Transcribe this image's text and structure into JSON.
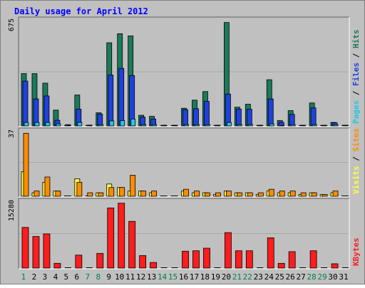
{
  "chart_data": {
    "type": "bar",
    "title": "Daily usage for April 2012",
    "categories": [
      "1",
      "2",
      "3",
      "4",
      "5",
      "6",
      "7",
      "8",
      "9",
      "10",
      "11",
      "12",
      "13",
      "14",
      "15",
      "16",
      "17",
      "18",
      "19",
      "20",
      "21",
      "22",
      "23",
      "24",
      "25",
      "26",
      "27",
      "28",
      "29",
      "30",
      "31"
    ],
    "weekend_days": [
      "1",
      "7",
      "8",
      "14",
      "15",
      "21",
      "22",
      "28",
      "29"
    ],
    "panels": [
      {
        "id": "hits_files_pages",
        "ymax_label": "675",
        "ymax": 675,
        "legend": [
          "Pages",
          "Files",
          "Hits"
        ],
        "series": [
          {
            "name": "Hits",
            "color": "#1a7a5c",
            "values": [
              335,
              335,
              274,
              101,
              0,
              198,
              0,
              84,
              533,
              591,
              577,
              68,
              61,
              0,
              0,
              113,
              165,
              220,
              0,
              663,
              120,
              139,
              0,
              296,
              34,
              98,
              0,
              147,
              0,
              22,
              0
            ]
          },
          {
            "name": "Files",
            "color": "#2040e0",
            "values": [
              287,
              173,
              192,
              36,
              8,
              107,
              5,
              76,
              326,
              369,
              323,
              56,
              44,
              4,
              4,
              104,
              110,
              157,
              4,
              204,
              108,
              107,
              4,
              173,
              23,
              74,
              4,
              115,
              4,
              20,
              4
            ]
          },
          {
            "name": "Pages",
            "color": "#22c8e8",
            "values": [
              22,
              22,
              22,
              13,
              0,
              22,
              0,
              8,
              32,
              34,
              44,
              8,
              8,
              0,
              0,
              8,
              8,
              8,
              0,
              22,
              8,
              8,
              0,
              13,
              0,
              8,
              0,
              8,
              0,
              8,
              0
            ]
          }
        ]
      },
      {
        "id": "visits_sites",
        "ymax_label": "37",
        "ymax": 37,
        "legend": [
          "Visits",
          "Sites"
        ],
        "series": [
          {
            "name": "Visits",
            "color": "#ffff40",
            "values": [
              14,
              2,
              8,
              3,
              0,
              10,
              0,
              2,
              7,
              5,
              3,
              3,
              2,
              0,
              0,
              3,
              2,
              2,
              1,
              3,
              2,
              2,
              1,
              3,
              2,
              2,
              1,
              2,
              1,
              2,
              0
            ]
          },
          {
            "name": "Sites",
            "color": "#ff8c00",
            "values": [
              36,
              3,
              11,
              3,
              0,
              8,
              2,
              2,
              5,
              5,
              12,
              3,
              3,
              0,
              0,
              4,
              3,
              2,
              2,
              3,
              2,
              2,
              2,
              4,
              3,
              3,
              2,
              2,
              1,
              3,
              0
            ]
          }
        ]
      },
      {
        "id": "kbytes",
        "ymax_label": "15280",
        "ymax": 15280,
        "legend": [
          "KBytes"
        ],
        "series": [
          {
            "name": "KBytes",
            "color": "#ff1c1c",
            "values": [
              9400,
              7300,
              7900,
              1100,
              0,
              3000,
              0,
              3400,
              13900,
              15000,
              10800,
              2900,
              1300,
              0,
              0,
              3900,
              4000,
              4600,
              0,
              8200,
              4000,
              4000,
              0,
              7000,
              1100,
              3800,
              0,
              4000,
              0,
              1000,
              0
            ]
          }
        ]
      }
    ],
    "colors": {
      "background": "#c0c0c0",
      "title": "#0000ff",
      "axis_label": "#000000",
      "weekday_label": "#000000",
      "weekend_label": "#00804d",
      "legend_pages": "#22c8e8",
      "legend_files": "#2040e0",
      "legend_hits": "#1a7a5c",
      "legend_visits": "#ffff40",
      "legend_sites": "#ff8c00",
      "legend_kbytes": "#ff1c1c",
      "legend_separator": "#000000"
    }
  }
}
